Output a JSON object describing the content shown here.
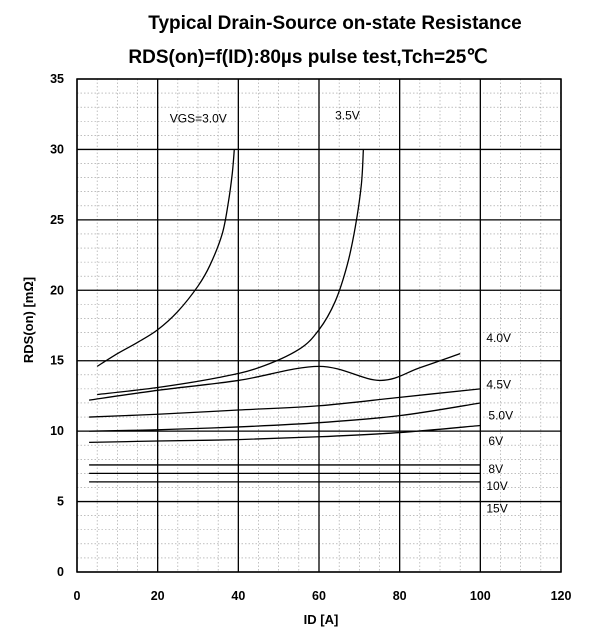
{
  "chart_data": {
    "type": "line",
    "title": "Typical Drain-Source on-state Resistance",
    "subtitle": "RDS(on)=f(ID):80µs pulse test,Tch=25℃",
    "xlabel": "ID [A]",
    "ylabel": "RDS(on) [mΩ]",
    "xlim": [
      0,
      120
    ],
    "ylim": [
      0,
      35
    ],
    "xticks": [
      "0",
      "20",
      "40",
      "60",
      "80",
      "100",
      "120"
    ],
    "yticks": [
      "0",
      "5",
      "10",
      "15",
      "20",
      "25",
      "30",
      "35"
    ],
    "grid": true,
    "series": [
      {
        "name": "VGS=3.0V",
        "x": [
          5,
          10,
          15,
          20,
          25,
          30,
          33,
          36,
          37.5,
          38.5,
          39
        ],
        "y": [
          14.6,
          15.5,
          16.3,
          17.2,
          18.5,
          20.3,
          21.8,
          24,
          26.2,
          28.3,
          30
        ]
      },
      {
        "name": "3.5V",
        "x": [
          5,
          20,
          35,
          45,
          55,
          60,
          64,
          67,
          69,
          70.5,
          71
        ],
        "y": [
          12.6,
          13.1,
          13.8,
          14.5,
          15.8,
          17.2,
          19.2,
          21.8,
          24.5,
          27.5,
          30
        ]
      },
      {
        "name": "4.0V",
        "x": [
          3,
          20,
          40,
          60,
          75,
          85,
          95
        ],
        "y": [
          12.2,
          12.9,
          13.6,
          14.6,
          13.6,
          14.5,
          15.5
        ]
      },
      {
        "name": "4.5V",
        "x": [
          3,
          20,
          40,
          60,
          80,
          100
        ],
        "y": [
          11,
          11.2,
          11.5,
          11.8,
          12.4,
          13
        ]
      },
      {
        "name": "5.0V",
        "x": [
          3,
          20,
          40,
          60,
          80,
          100
        ],
        "y": [
          10,
          10.1,
          10.3,
          10.6,
          11.1,
          12
        ]
      },
      {
        "name": "6V",
        "x": [
          3,
          20,
          40,
          60,
          80,
          100
        ],
        "y": [
          9.2,
          9.3,
          9.4,
          9.6,
          9.9,
          10.4
        ]
      },
      {
        "name": "8V",
        "x": [
          3,
          100
        ],
        "y": [
          7.6,
          7.6
        ]
      },
      {
        "name": "10V",
        "x": [
          3,
          100
        ],
        "y": [
          7.0,
          7.0
        ]
      },
      {
        "name": "15V",
        "x": [
          3,
          100
        ],
        "y": [
          6.4,
          6.4
        ]
      }
    ],
    "labels": [
      {
        "text": "VGS=3.0V",
        "x": 23,
        "y": 32.2
      },
      {
        "text": "3.5V",
        "x": 64,
        "y": 32.4
      },
      {
        "text": "4.0V",
        "x": 101.5,
        "y": 16.6
      },
      {
        "text": "4.5V",
        "x": 101.5,
        "y": 13.3
      },
      {
        "text": "5.0V",
        "x": 102,
        "y": 11.1
      },
      {
        "text": "6V",
        "x": 102,
        "y": 9.3
      },
      {
        "text": "8V",
        "x": 102,
        "y": 7.3
      },
      {
        "text": "10V",
        "x": 101.5,
        "y": 6.1
      },
      {
        "text": "15V",
        "x": 101.5,
        "y": 4.5
      }
    ]
  }
}
